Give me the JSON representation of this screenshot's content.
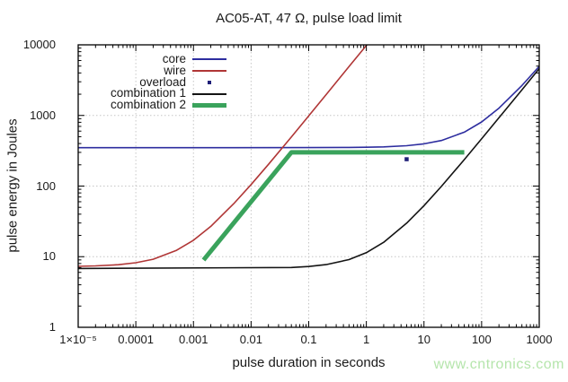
{
  "chart_data": {
    "type": "line",
    "title": "AC05-AT, 47 Ω, pulse load limit",
    "xlabel": "pulse duration in seconds",
    "ylabel": "pulse energy in Joules",
    "x_scale": "log",
    "y_scale": "log",
    "xlim": [
      1e-05,
      1000
    ],
    "ylim": [
      1,
      10000
    ],
    "x_tick_values": [
      1e-05,
      0.0001,
      0.001,
      0.01,
      0.1,
      1,
      10,
      100,
      1000
    ],
    "x_tick_labels": [
      "1×10⁻⁵",
      "0.0001",
      "0.001",
      "0.01",
      "0.1",
      "1",
      "10",
      "100",
      "1000"
    ],
    "y_tick_values": [
      1,
      10,
      100,
      1000,
      10000
    ],
    "y_tick_labels": [
      "1",
      "10",
      "100",
      "1000",
      "10000"
    ],
    "grid": "dotted lines at every decade, both axes",
    "legend_position": "top-left inside plot",
    "series": [
      {
        "name": "core",
        "type": "line",
        "color": "#2d2d9f",
        "width": 1.6,
        "points": [
          [
            1e-05,
            350
          ],
          [
            0.001,
            350
          ],
          [
            0.1,
            350.5
          ],
          [
            0.5,
            352.3
          ],
          [
            1,
            354.6
          ],
          [
            2,
            359.2
          ],
          [
            5,
            373
          ],
          [
            10,
            396
          ],
          [
            20,
            442
          ],
          [
            50,
            580
          ],
          [
            100,
            810
          ],
          [
            200,
            1270
          ],
          [
            500,
            2650
          ],
          [
            1000,
            4950
          ]
        ]
      },
      {
        "name": "wire",
        "type": "line",
        "color": "#b03636",
        "width": 1.6,
        "points": [
          [
            1e-05,
            7.3
          ],
          [
            2e-05,
            7.4
          ],
          [
            5e-05,
            7.7
          ],
          [
            0.0001,
            8.2
          ],
          [
            0.0002,
            9.2
          ],
          [
            0.0005,
            12.2
          ],
          [
            0.001,
            17.1
          ],
          [
            0.002,
            26.9
          ],
          [
            0.005,
            56.3
          ],
          [
            0.01,
            105
          ],
          [
            0.02,
            203
          ],
          [
            0.05,
            497
          ],
          [
            0.1,
            987
          ],
          [
            0.2,
            1967
          ],
          [
            0.5,
            4907
          ],
          [
            1.0,
            9807
          ],
          [
            1.02,
            10000
          ]
        ]
      },
      {
        "name": "overload",
        "type": "scatter",
        "color": "#1f1f78",
        "marker": "square",
        "marker_size": 4.5,
        "points": [
          [
            5,
            240
          ]
        ]
      },
      {
        "name": "combination 1",
        "type": "line",
        "color": "#141414",
        "width": 1.6,
        "points": [
          [
            1e-05,
            6.8
          ],
          [
            0.05,
            7.03
          ],
          [
            0.1,
            7.26
          ],
          [
            0.2,
            7.72
          ],
          [
            0.5,
            9.1
          ],
          [
            1,
            11.4
          ],
          [
            2,
            16
          ],
          [
            5,
            29.8
          ],
          [
            10,
            52.8
          ],
          [
            20,
            98.8
          ],
          [
            50,
            236.8
          ],
          [
            100,
            466.8
          ],
          [
            200,
            926.8
          ],
          [
            500,
            2306.8
          ],
          [
            1000,
            4606.8
          ]
        ]
      },
      {
        "name": "combination 2",
        "type": "line",
        "color": "#3aa35c",
        "width": 5,
        "points": [
          [
            0.0015,
            9
          ],
          [
            0.05,
            300
          ],
          [
            50,
            300
          ]
        ]
      }
    ]
  },
  "legend": {
    "items": [
      {
        "label": "core",
        "swatch": "line",
        "color": "#2d2d9f",
        "thickness": 2
      },
      {
        "label": "wire",
        "swatch": "line",
        "color": "#b03636",
        "thickness": 2
      },
      {
        "label": "overload",
        "swatch": "dot",
        "color": "#1f1f78",
        "thickness": 4
      },
      {
        "label": "combination 1",
        "swatch": "line",
        "color": "#141414",
        "thickness": 2
      },
      {
        "label": "combination 2",
        "swatch": "line",
        "color": "#3aa35c",
        "thickness": 5
      }
    ]
  },
  "watermark": {
    "text": "www.cntronics.com",
    "color": "#b5e5ac"
  }
}
